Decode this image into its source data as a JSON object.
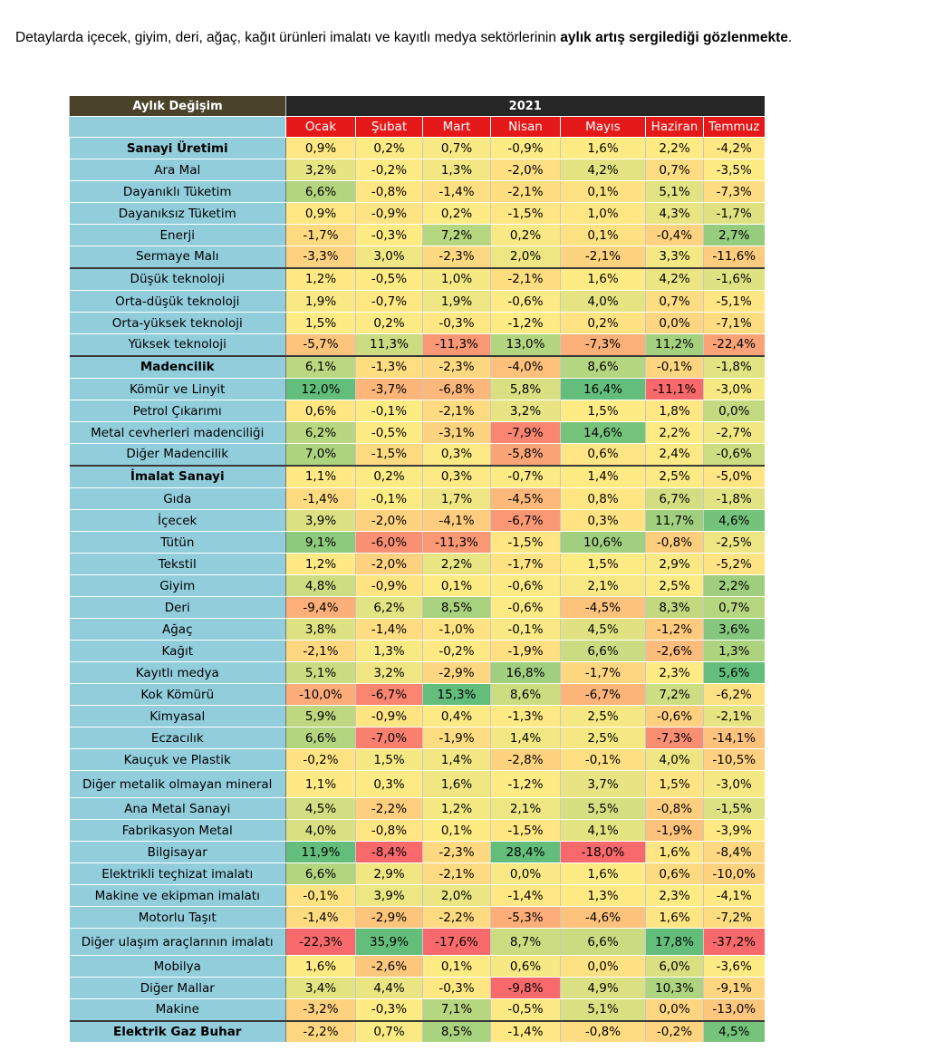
{
  "intro": {
    "text_normal": "Detaylarda içecek, giyim, deri, ağaç, kağıt ürünleri imalatı ve kayıtlı medya sektörlerinin ",
    "text_bold": "aylık artış sergilediği gözlenmekte",
    "text_end": "."
  },
  "table": {
    "corner_label": "Aylık Değişim",
    "year": "2021",
    "months": [
      "Ocak",
      "Şubat",
      "Mart",
      "Nisan",
      "Mayıs",
      "Haziran",
      "Temmuz"
    ],
    "rows": [
      {
        "label": "Sanayi Üretimi",
        "bold": true,
        "sep": false,
        "h": 24,
        "values": [
          "0,9%",
          "0,2%",
          "0,7%",
          "-0,9%",
          "1,6%",
          "2,2%",
          "-4,2%"
        ]
      },
      {
        "label": "Ara Mal",
        "bold": false,
        "sep": false,
        "h": 24,
        "values": [
          "3,2%",
          "-0,2%",
          "1,3%",
          "-2,0%",
          "4,2%",
          "0,7%",
          "-3,5%"
        ]
      },
      {
        "label": "Dayanıklı Tüketim",
        "bold": false,
        "sep": false,
        "h": 24,
        "values": [
          "6,6%",
          "-0,8%",
          "-1,4%",
          "-2,1%",
          "0,1%",
          "5,1%",
          "-7,3%"
        ]
      },
      {
        "label": "Dayanıksız Tüketim",
        "bold": false,
        "sep": false,
        "h": 24,
        "values": [
          "0,9%",
          "-0,9%",
          "0,2%",
          "-1,5%",
          "1,0%",
          "4,3%",
          "-1,7%"
        ]
      },
      {
        "label": "Enerji",
        "bold": false,
        "sep": false,
        "h": 24,
        "values": [
          "-1,7%",
          "-0,3%",
          "7,2%",
          "0,2%",
          "0,1%",
          "-0,4%",
          "2,7%"
        ]
      },
      {
        "label": "Sermaye Malı",
        "bold": false,
        "sep": false,
        "h": 24,
        "values": [
          "-3,3%",
          "3,0%",
          "-2,3%",
          "2,0%",
          "-2,1%",
          "3,3%",
          "-11,6%"
        ]
      },
      {
        "label": "Düşük teknoloji",
        "bold": false,
        "sep": true,
        "h": 25,
        "values": [
          "1,2%",
          "-0,5%",
          "1,0%",
          "-2,1%",
          "1,6%",
          "4,2%",
          "-1,6%"
        ]
      },
      {
        "label": "Orta-düşük teknoloji",
        "bold": false,
        "sep": false,
        "h": 24,
        "values": [
          "1,9%",
          "-0,7%",
          "1,9%",
          "-0,6%",
          "4,0%",
          "0,7%",
          "-5,1%"
        ]
      },
      {
        "label": "Orta-yüksek teknoloji",
        "bold": false,
        "sep": false,
        "h": 24,
        "values": [
          "1,5%",
          "0,2%",
          "-0,3%",
          "-1,2%",
          "0,2%",
          "0,0%",
          "-7,1%"
        ]
      },
      {
        "label": "Yüksek teknoloji",
        "bold": false,
        "sep": false,
        "h": 24,
        "values": [
          "-5,7%",
          "11,3%",
          "-11,3%",
          "13,0%",
          "-7,3%",
          "11,2%",
          "-22,4%"
        ]
      },
      {
        "label": "Madencilik",
        "bold": true,
        "sep": true,
        "h": 25,
        "values": [
          "6,1%",
          "-1,3%",
          "-2,3%",
          "-4,0%",
          "8,6%",
          "-0,1%",
          "-1,8%"
        ]
      },
      {
        "label": "Kömür ve Linyit",
        "bold": false,
        "sep": false,
        "h": 24,
        "values": [
          "12,0%",
          "-3,7%",
          "-6,8%",
          "5,8%",
          "16,4%",
          "-11,1%",
          "-3,0%"
        ]
      },
      {
        "label": "Petrol Çıkarımı",
        "bold": false,
        "sep": false,
        "h": 24,
        "values": [
          "0,6%",
          "-0,1%",
          "-2,1%",
          "3,2%",
          "1,5%",
          "1,8%",
          "0,0%"
        ]
      },
      {
        "label": "Metal cevherleri madenciliği",
        "bold": false,
        "sep": false,
        "h": 24,
        "values": [
          "6,2%",
          "-0,5%",
          "-3,1%",
          "-7,9%",
          "14,6%",
          "2,2%",
          "-2,7%"
        ]
      },
      {
        "label": "Diğer Madencilik",
        "bold": false,
        "sep": false,
        "h": 24,
        "values": [
          "7,0%",
          "-1,5%",
          "0,3%",
          "-5,8%",
          "0,6%",
          "2,4%",
          "-0,6%"
        ]
      },
      {
        "label": "İmalat Sanayi",
        "bold": true,
        "sep": true,
        "h": 25,
        "values": [
          "1,1%",
          "0,2%",
          "0,3%",
          "-0,7%",
          "1,4%",
          "2,5%",
          "-5,0%"
        ]
      },
      {
        "label": "Gıda",
        "bold": false,
        "sep": false,
        "h": 24,
        "values": [
          "-1,4%",
          "-0,1%",
          "1,7%",
          "-4,5%",
          "0,8%",
          "6,7%",
          "-1,8%"
        ]
      },
      {
        "label": "İçecek",
        "bold": false,
        "sep": false,
        "h": 24,
        "values": [
          "3,9%",
          "-2,0%",
          "-4,1%",
          "-6,7%",
          "0,3%",
          "11,7%",
          "4,6%"
        ]
      },
      {
        "label": "Tütün",
        "bold": false,
        "sep": false,
        "h": 24,
        "values": [
          "9,1%",
          "-6,0%",
          "-11,3%",
          "-1,5%",
          "10,6%",
          "-0,8%",
          "-2,5%"
        ]
      },
      {
        "label": "Tekstil",
        "bold": false,
        "sep": false,
        "h": 24,
        "values": [
          "1,2%",
          "-2,0%",
          "2,2%",
          "-1,7%",
          "1,5%",
          "2,9%",
          "-5,2%"
        ]
      },
      {
        "label": "Giyim",
        "bold": false,
        "sep": false,
        "h": 24,
        "values": [
          "4,8%",
          "-0,9%",
          "0,1%",
          "-0,6%",
          "2,1%",
          "2,5%",
          "2,2%"
        ]
      },
      {
        "label": "Deri",
        "bold": false,
        "sep": false,
        "h": 24,
        "values": [
          "-9,4%",
          "6,2%",
          "8,5%",
          "-0,6%",
          "-4,5%",
          "8,3%",
          "0,7%"
        ]
      },
      {
        "label": "Ağaç",
        "bold": false,
        "sep": false,
        "h": 24,
        "values": [
          "3,8%",
          "-1,4%",
          "-1,0%",
          "-0,1%",
          "4,5%",
          "-1,2%",
          "3,6%"
        ]
      },
      {
        "label": "Kağıt",
        "bold": false,
        "sep": false,
        "h": 24,
        "values": [
          "-2,1%",
          "1,3%",
          "-0,2%",
          "-1,9%",
          "6,6%",
          "-2,6%",
          "1,3%"
        ]
      },
      {
        "label": "Kayıtlı medya",
        "bold": false,
        "sep": false,
        "h": 24,
        "values": [
          "5,1%",
          "3,2%",
          "-2,9%",
          "16,8%",
          "-1,7%",
          "2,3%",
          "5,6%"
        ]
      },
      {
        "label": "Kok Kömürü",
        "bold": false,
        "sep": false,
        "h": 24,
        "values": [
          "-10,0%",
          "-6,7%",
          "15,3%",
          "8,6%",
          "-6,7%",
          "7,2%",
          "-6,2%"
        ]
      },
      {
        "label": "Kimyasal",
        "bold": false,
        "sep": false,
        "h": 24,
        "values": [
          "5,9%",
          "-0,9%",
          "0,4%",
          "-1,3%",
          "2,5%",
          "-0,6%",
          "-2,1%"
        ]
      },
      {
        "label": "Eczacılık",
        "bold": false,
        "sep": false,
        "h": 24,
        "values": [
          "6,6%",
          "-7,0%",
          "-1,9%",
          "1,4%",
          "2,5%",
          "-7,3%",
          "-14,1%"
        ]
      },
      {
        "label": "Kauçuk ve Plastik",
        "bold": false,
        "sep": false,
        "h": 24,
        "values": [
          "-0,2%",
          "1,5%",
          "1,4%",
          "-2,8%",
          "-0,1%",
          "4,0%",
          "-10,5%"
        ]
      },
      {
        "label": "Diğer metalik olmayan mineral",
        "bold": false,
        "sep": false,
        "h": 30,
        "values": [
          "1,1%",
          "0,3%",
          "1,6%",
          "-1,2%",
          "3,7%",
          "1,5%",
          "-3,0%"
        ]
      },
      {
        "label": "Ana Metal Sanayi",
        "bold": false,
        "sep": false,
        "h": 24,
        "values": [
          "4,5%",
          "-2,2%",
          "1,2%",
          "2,1%",
          "5,5%",
          "-0,8%",
          "-1,5%"
        ]
      },
      {
        "label": "Fabrikasyon Metal",
        "bold": false,
        "sep": false,
        "h": 24,
        "values": [
          "4,0%",
          "-0,8%",
          "0,1%",
          "-1,5%",
          "4,1%",
          "-1,9%",
          "-3,9%"
        ]
      },
      {
        "label": "Bilgisayar",
        "bold": false,
        "sep": false,
        "h": 24,
        "values": [
          "11,9%",
          "-8,4%",
          "-2,3%",
          "28,4%",
          "-18,0%",
          "1,6%",
          "-8,4%"
        ]
      },
      {
        "label": "Elektrikli teçhizat imalatı",
        "bold": false,
        "sep": false,
        "h": 24,
        "values": [
          "6,6%",
          "2,9%",
          "-2,1%",
          "0,0%",
          "1,6%",
          "0,6%",
          "-10,0%"
        ]
      },
      {
        "label": "Makine ve ekipman imalatı",
        "bold": false,
        "sep": false,
        "h": 24,
        "values": [
          "-0,1%",
          "3,9%",
          "2,0%",
          "-1,4%",
          "1,3%",
          "2,3%",
          "-4,1%"
        ]
      },
      {
        "label": "Motorlu Taşıt",
        "bold": false,
        "sep": false,
        "h": 24,
        "values": [
          "-1,4%",
          "-2,9%",
          "-2,2%",
          "-5,3%",
          "-4,6%",
          "1,6%",
          "-7,2%"
        ]
      },
      {
        "label": "Diğer ulaşım araçlarının imalatı",
        "bold": false,
        "sep": false,
        "h": 30,
        "values": [
          "-22,3%",
          "35,9%",
          "-17,6%",
          "8,7%",
          "6,6%",
          "17,8%",
          "-37,2%"
        ]
      },
      {
        "label": "Mobilya",
        "bold": false,
        "sep": false,
        "h": 24,
        "values": [
          "1,6%",
          "-2,6%",
          "0,1%",
          "0,6%",
          "0,0%",
          "6,0%",
          "-3,6%"
        ]
      },
      {
        "label": "Diğer Mallar",
        "bold": false,
        "sep": false,
        "h": 24,
        "values": [
          "3,4%",
          "4,4%",
          "-0,3%",
          "-9,8%",
          "4,9%",
          "10,3%",
          "-9,1%"
        ]
      },
      {
        "label": "Makine",
        "bold": false,
        "sep": false,
        "h": 24,
        "values": [
          "-3,2%",
          "-0,3%",
          "7,1%",
          "-0,5%",
          "5,1%",
          "0,0%",
          "-13,0%"
        ]
      },
      {
        "label": "Elektrik Gaz Buhar",
        "bold": true,
        "sep": true,
        "h": 24,
        "values": [
          "-2,2%",
          "0,7%",
          "8,5%",
          "-1,4%",
          "-0,8%",
          "-0,2%",
          "4,5%"
        ]
      }
    ]
  },
  "colors": {
    "low": "#f8696b",
    "mid": "#ffeb84",
    "high": "#63be7b",
    "label_bg": "#92cddc",
    "header_dark": "#262626",
    "corner_bg": "#4a432a",
    "month_bg": "#e51919"
  }
}
